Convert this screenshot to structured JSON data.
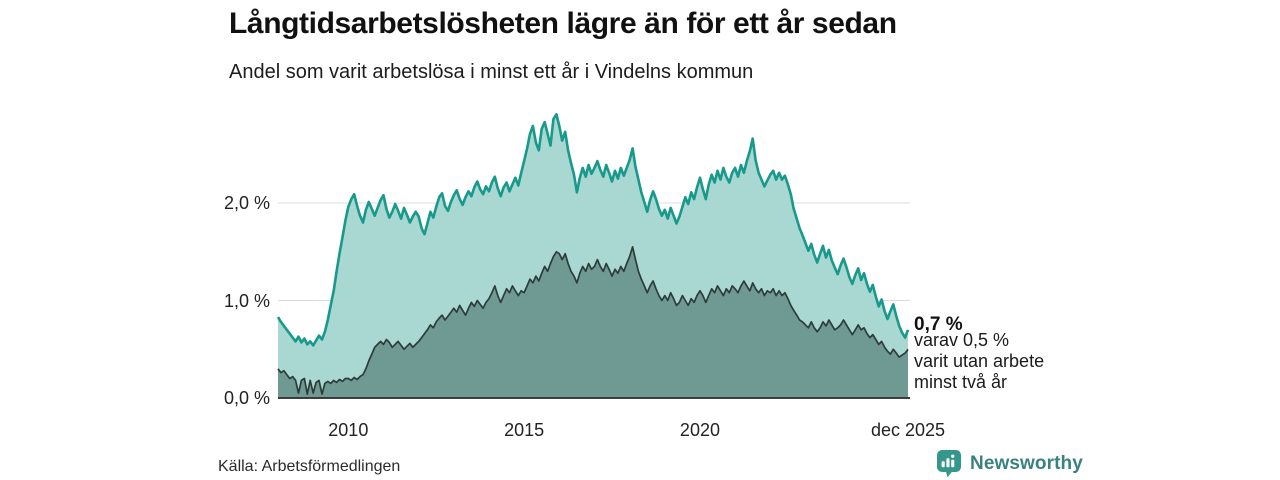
{
  "header": {
    "title": "Långtidsarbetslösheten lägre än för ett år sedan",
    "subtitle": "Andel som varit arbetslösa i minst ett år i Vindelns kommun"
  },
  "chart_data": {
    "type": "area",
    "unit": "%",
    "x_start": "2008-01",
    "x_end": "2025-12",
    "ylim": [
      0,
      2.95
    ],
    "grid": "horizontal",
    "y_ticks": [
      {
        "label": "0,0 %",
        "value": 0
      },
      {
        "label": "1,0 %",
        "value": 1
      },
      {
        "label": "2,0 %",
        "value": 2
      }
    ],
    "x_ticks": [
      {
        "label": "2010",
        "month_index": 24
      },
      {
        "label": "2015",
        "month_index": 84
      },
      {
        "label": "2020",
        "month_index": 144
      },
      {
        "label": "dec 2025",
        "month_index": 215
      }
    ],
    "series": [
      {
        "name": "Andel arbetslösa minst ett år",
        "line_color": "#17998b",
        "fill_color": "#a8d8d1",
        "line_width": 2.6,
        "values": [
          0.83,
          0.78,
          0.74,
          0.7,
          0.66,
          0.62,
          0.58,
          0.63,
          0.57,
          0.61,
          0.55,
          0.58,
          0.54,
          0.59,
          0.64,
          0.6,
          0.68,
          0.8,
          0.95,
          1.1,
          1.3,
          1.48,
          1.65,
          1.82,
          1.96,
          2.04,
          2.09,
          1.97,
          1.87,
          1.8,
          1.93,
          2.01,
          1.94,
          1.87,
          1.95,
          2.03,
          2.08,
          1.94,
          1.85,
          1.91,
          1.99,
          1.92,
          1.84,
          1.95,
          1.88,
          1.8,
          1.86,
          1.91,
          1.86,
          1.74,
          1.68,
          1.79,
          1.91,
          1.85,
          1.96,
          2.06,
          2.1,
          1.97,
          1.92,
          2.01,
          2.08,
          2.13,
          2.04,
          1.98,
          2.06,
          2.12,
          2.07,
          2.16,
          2.22,
          2.14,
          2.09,
          2.17,
          2.12,
          2.21,
          2.27,
          2.15,
          2.07,
          2.16,
          2.21,
          2.12,
          2.19,
          2.26,
          2.18,
          2.31,
          2.43,
          2.56,
          2.71,
          2.79,
          2.62,
          2.54,
          2.76,
          2.83,
          2.71,
          2.59,
          2.86,
          2.91,
          2.79,
          2.64,
          2.73,
          2.54,
          2.41,
          2.29,
          2.11,
          2.26,
          2.36,
          2.27,
          2.39,
          2.3,
          2.36,
          2.43,
          2.34,
          2.27,
          2.39,
          2.31,
          2.22,
          2.33,
          2.25,
          2.36,
          2.28,
          2.36,
          2.44,
          2.56,
          2.37,
          2.24,
          2.11,
          2.01,
          1.91,
          2.03,
          2.12,
          2.04,
          1.94,
          1.87,
          1.93,
          1.84,
          1.95,
          1.87,
          1.79,
          1.86,
          1.96,
          2.06,
          1.99,
          2.11,
          2.04,
          2.16,
          2.26,
          2.14,
          2.04,
          2.19,
          2.29,
          2.21,
          2.33,
          2.24,
          2.36,
          2.27,
          2.21,
          2.31,
          2.36,
          2.27,
          2.39,
          2.31,
          2.43,
          2.53,
          2.66,
          2.44,
          2.31,
          2.24,
          2.17,
          2.23,
          2.29,
          2.33,
          2.24,
          2.31,
          2.24,
          2.28,
          2.19,
          2.09,
          1.94,
          1.84,
          1.74,
          1.67,
          1.59,
          1.51,
          1.58,
          1.47,
          1.39,
          1.48,
          1.56,
          1.44,
          1.52,
          1.41,
          1.34,
          1.27,
          1.36,
          1.43,
          1.34,
          1.24,
          1.17,
          1.26,
          1.33,
          1.21,
          1.28,
          1.17,
          1.09,
          1.16,
          1.04,
          0.94,
          1.01,
          0.89,
          0.81,
          0.89,
          0.96,
          0.84,
          0.74,
          0.67,
          0.62,
          0.7
        ]
      },
      {
        "name": "varav utan arbete minst två år",
        "line_color": "#2d3c39",
        "fill_color": "#6f9a93",
        "line_width": 1.7,
        "values": [
          0.3,
          0.26,
          0.28,
          0.24,
          0.2,
          0.22,
          0.18,
          0.05,
          0.18,
          0.2,
          0.04,
          0.18,
          0.05,
          0.16,
          0.18,
          0.04,
          0.15,
          0.17,
          0.15,
          0.18,
          0.16,
          0.19,
          0.17,
          0.2,
          0.2,
          0.18,
          0.21,
          0.19,
          0.22,
          0.24,
          0.3,
          0.38,
          0.45,
          0.52,
          0.55,
          0.58,
          0.55,
          0.6,
          0.57,
          0.52,
          0.55,
          0.58,
          0.54,
          0.5,
          0.53,
          0.56,
          0.52,
          0.55,
          0.58,
          0.62,
          0.66,
          0.7,
          0.75,
          0.72,
          0.78,
          0.82,
          0.85,
          0.8,
          0.84,
          0.88,
          0.92,
          0.88,
          0.95,
          0.9,
          0.85,
          0.92,
          0.98,
          0.94,
          1.0,
          0.96,
          0.92,
          0.98,
          1.02,
          1.08,
          1.15,
          1.05,
          0.98,
          1.05,
          1.12,
          1.08,
          1.15,
          1.1,
          1.05,
          1.1,
          1.08,
          1.15,
          1.22,
          1.18,
          1.25,
          1.2,
          1.28,
          1.35,
          1.3,
          1.38,
          1.45,
          1.5,
          1.48,
          1.42,
          1.48,
          1.38,
          1.3,
          1.25,
          1.18,
          1.28,
          1.35,
          1.3,
          1.38,
          1.32,
          1.35,
          1.42,
          1.35,
          1.3,
          1.38,
          1.32,
          1.25,
          1.32,
          1.28,
          1.35,
          1.3,
          1.38,
          1.45,
          1.55,
          1.42,
          1.3,
          1.22,
          1.15,
          1.08,
          1.15,
          1.2,
          1.12,
          1.05,
          1.0,
          1.05,
          1.0,
          1.08,
          1.02,
          0.95,
          0.98,
          1.05,
          1.0,
          0.95,
          1.02,
          0.98,
          1.05,
          1.1,
          1.05,
          0.98,
          1.05,
          1.12,
          1.08,
          1.15,
          1.1,
          1.05,
          1.12,
          1.08,
          1.15,
          1.12,
          1.08,
          1.15,
          1.2,
          1.15,
          1.1,
          1.18,
          1.12,
          1.08,
          1.12,
          1.05,
          1.1,
          1.08,
          1.12,
          1.05,
          1.1,
          1.05,
          1.08,
          1.02,
          0.95,
          0.9,
          0.85,
          0.8,
          0.78,
          0.75,
          0.72,
          0.78,
          0.72,
          0.68,
          0.72,
          0.78,
          0.74,
          0.8,
          0.75,
          0.7,
          0.72,
          0.75,
          0.8,
          0.75,
          0.7,
          0.65,
          0.7,
          0.75,
          0.7,
          0.72,
          0.66,
          0.62,
          0.65,
          0.6,
          0.55,
          0.58,
          0.52,
          0.48,
          0.45,
          0.5,
          0.46,
          0.42,
          0.44,
          0.46,
          0.5
        ]
      }
    ],
    "annotation": {
      "value_label": "0,7 %",
      "sub_line_1": "varav 0,5 %",
      "sub_line_2": "varit utan arbete",
      "sub_line_3": "minst två år"
    },
    "colors": {
      "grid": "#dcdcdc",
      "axis": "#3c3c3c"
    }
  },
  "footer": {
    "source": "Källa: Arbetsförmedlingen",
    "brand_name": "Newsworthy",
    "brand_color": "#3a827f",
    "brand_icon_color": "#35968c"
  }
}
